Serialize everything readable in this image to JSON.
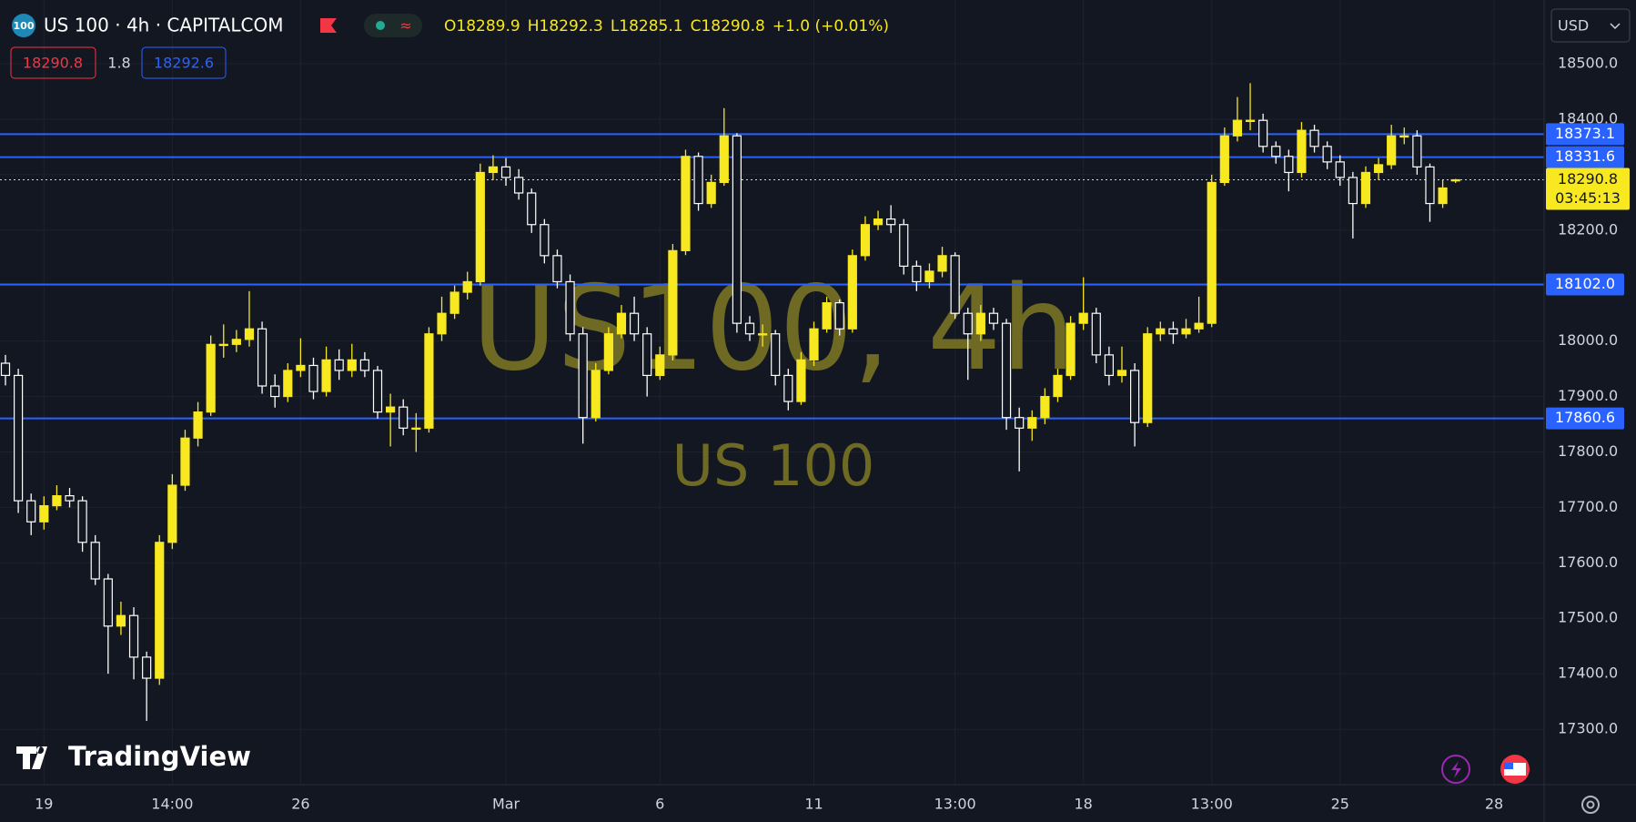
{
  "header": {
    "symbol": "US 100 · 4h · CAPITALCOM",
    "logo": "100",
    "legend_keys": [
      "O",
      "H",
      "L",
      "C"
    ],
    "change": "+1.0 (+0.01%)",
    "bid": "18290.8",
    "spread": "1.8",
    "ask": "18292.6",
    "currency": "USD"
  },
  "watermark": {
    "title": "US100, 4h",
    "subtitle": "US 100"
  },
  "branding": "TradingView",
  "chart_data": {
    "type": "candlestick",
    "grid": true,
    "up_color": "#f7e81f",
    "down_color": "#ffffff",
    "line_color": "#2962ff",
    "last_color": "#f7e81f",
    "ylim": [
      17200,
      18615
    ],
    "yticks": [
      {
        "value": 17300,
        "label": "17300.0"
      },
      {
        "value": 17400,
        "label": "17400.0"
      },
      {
        "value": 17500,
        "label": "17500.0"
      },
      {
        "value": 17600,
        "label": "17600.0"
      },
      {
        "value": 17700,
        "label": "17700.0"
      },
      {
        "value": 17800,
        "label": "17800.0"
      },
      {
        "value": 17900,
        "label": "17900.0"
      },
      {
        "value": 18000,
        "label": "18000.0"
      },
      {
        "value": 18100,
        "label": "18100.0"
      },
      {
        "value": 18200,
        "label": "18200.0"
      },
      {
        "value": 18300,
        "label": "18300.0"
      },
      {
        "value": 18400,
        "label": "18400.0"
      },
      {
        "value": 18500,
        "label": "18500.0"
      }
    ],
    "hlines": [
      {
        "value": 18373.1,
        "label": "18373.1"
      },
      {
        "value": 18331.6,
        "label": "18331.6"
      },
      {
        "value": 18102.0,
        "label": "18102.0"
      },
      {
        "value": 17860.6,
        "label": "17860.6"
      }
    ],
    "countdown": "03:45:13",
    "categories": [
      null,
      null,
      null,
      "19",
      null,
      null,
      null,
      null,
      null,
      null,
      null,
      null,
      null,
      "14:00",
      null,
      null,
      null,
      null,
      null,
      null,
      null,
      null,
      null,
      "26",
      null,
      null,
      null,
      null,
      null,
      null,
      null,
      null,
      null,
      null,
      null,
      null,
      null,
      null,
      null,
      "Mar",
      null,
      null,
      null,
      null,
      null,
      null,
      null,
      null,
      null,
      null,
      null,
      "6",
      null,
      null,
      null,
      null,
      null,
      null,
      null,
      null,
      null,
      null,
      null,
      "11",
      null,
      null,
      null,
      null,
      null,
      null,
      null,
      null,
      null,
      null,
      "13:00",
      null,
      null,
      null,
      null,
      null,
      null,
      null,
      null,
      null,
      "18",
      null,
      null,
      null,
      null,
      null,
      null,
      null,
      null,
      null,
      "13:00",
      null,
      null,
      null,
      null,
      null,
      null,
      null,
      null,
      null,
      "25",
      null,
      null,
      null,
      null,
      null,
      null,
      null,
      null,
      null,
      null,
      null,
      "28"
    ],
    "open": [
      17960,
      17938,
      17712,
      17674,
      17703,
      17721,
      17712,
      17637,
      17571,
      17486,
      17505,
      17430,
      17392,
      17637,
      17740,
      17825,
      17872,
      17994,
      17994,
      18003,
      18022,
      17919,
      17900,
      17947,
      17956,
      17909,
      17966,
      17947,
      17966,
      17947,
      17872,
      17881,
      17843,
      17843,
      18013,
      18050,
      18088,
      18107,
      18304,
      18314,
      18295,
      18267,
      18210,
      18154,
      18107,
      18013,
      17862,
      17947,
      18013,
      18050,
      18013,
      17938,
      17975,
      18163,
      18333,
      18248,
      18286,
      18370,
      18032,
      18013,
      18013,
      17938,
      17891,
      17966,
      18022,
      18069,
      18022,
      18154,
      18210,
      18220,
      18210,
      18135,
      18107,
      18126,
      18154,
      18050,
      18013,
      18050,
      18032,
      17862,
      17843,
      17862,
      17900,
      17938,
      18032,
      18050,
      17975,
      17938,
      17947,
      17853,
      18013,
      18022,
      18013,
      18022,
      18032,
      18286,
      18370,
      18398,
      18398,
      18351,
      18333,
      18304,
      18380,
      18351,
      18323,
      18295,
      18248,
      18304,
      18318,
      18370,
      18370,
      18314,
      18248,
      18289.9,
      null,
      null,
      null
    ],
    "high": [
      17975,
      17950,
      17725,
      17720,
      17740,
      17735,
      17720,
      17650,
      17580,
      17530,
      17520,
      17440,
      17650,
      17760,
      17840,
      17890,
      18010,
      18030,
      18020,
      18090,
      18035,
      17940,
      17960,
      18005,
      17970,
      17990,
      17985,
      17995,
      17980,
      17955,
      17905,
      17895,
      17870,
      18025,
      18080,
      18100,
      18125,
      18320,
      18335,
      18330,
      18310,
      18275,
      18220,
      18165,
      18120,
      18025,
      17960,
      18025,
      18065,
      18080,
      18025,
      17990,
      18175,
      18345,
      18340,
      18300,
      18420,
      18375,
      18045,
      18030,
      18020,
      17950,
      17980,
      18035,
      18080,
      18075,
      18165,
      18225,
      18235,
      18245,
      18220,
      18145,
      18140,
      18170,
      18160,
      18060,
      18065,
      18060,
      18040,
      17880,
      17875,
      17915,
      17950,
      18045,
      18115,
      18060,
      17990,
      17990,
      17960,
      18025,
      18035,
      18035,
      18040,
      18080,
      18300,
      18385,
      18440,
      18465,
      18410,
      18360,
      18345,
      18395,
      18390,
      18360,
      18335,
      18305,
      18315,
      18330,
      18390,
      18385,
      18380,
      18320,
      18290,
      18292.3,
      null,
      null,
      null
    ],
    "low": [
      17920,
      17690,
      17650,
      17660,
      17695,
      17700,
      17620,
      17560,
      17400,
      17470,
      17390,
      17315,
      17380,
      17625,
      17730,
      17810,
      17865,
      17970,
      17980,
      17990,
      17905,
      17880,
      17890,
      17935,
      17895,
      17900,
      17930,
      17935,
      17935,
      17860,
      17810,
      17830,
      17800,
      17835,
      18000,
      18040,
      18075,
      18100,
      18290,
      18280,
      18255,
      18195,
      18140,
      18095,
      18000,
      17815,
      17855,
      17940,
      18005,
      18000,
      17900,
      17930,
      17965,
      18155,
      18235,
      18240,
      18280,
      18015,
      18000,
      17990,
      17920,
      17875,
      17885,
      17955,
      18015,
      18010,
      18015,
      18145,
      18200,
      18195,
      18120,
      18090,
      18095,
      18115,
      18040,
      17930,
      18000,
      18020,
      17840,
      17765,
      17820,
      17850,
      17890,
      17930,
      18020,
      17960,
      17920,
      17925,
      17810,
      17845,
      18000,
      17995,
      18005,
      18015,
      18025,
      18280,
      18360,
      18380,
      18340,
      18320,
      18270,
      18295,
      18340,
      18310,
      18280,
      18185,
      18240,
      18290,
      18310,
      18355,
      18300,
      18215,
      18240,
      18285.1,
      null,
      null,
      null
    ],
    "close": [
      17938,
      17712,
      17674,
      17703,
      17721,
      17712,
      17637,
      17571,
      17486,
      17505,
      17430,
      17392,
      17637,
      17740,
      17825,
      17872,
      17994,
      17994,
      18003,
      18022,
      17919,
      17900,
      17947,
      17956,
      17909,
      17966,
      17947,
      17966,
      17947,
      17872,
      17881,
      17843,
      17843,
      18013,
      18050,
      18088,
      18107,
      18304,
      18314,
      18295,
      18267,
      18210,
      18154,
      18107,
      18013,
      17862,
      17947,
      18013,
      18050,
      18013,
      17938,
      17975,
      18163,
      18333,
      18248,
      18286,
      18370,
      18032,
      18013,
      18013,
      17938,
      17891,
      17966,
      18022,
      18069,
      18022,
      18154,
      18210,
      18220,
      18210,
      18135,
      18107,
      18126,
      18154,
      18050,
      18013,
      18050,
      18032,
      17862,
      17843,
      17862,
      17900,
      17938,
      18032,
      18050,
      17975,
      17938,
      17947,
      17853,
      18013,
      18022,
      18013,
      18022,
      18032,
      18286,
      18370,
      18398,
      18398,
      18351,
      18333,
      18304,
      18380,
      18351,
      18323,
      18295,
      18248,
      18304,
      18318,
      18370,
      18370,
      18314,
      18248,
      18276,
      18290.8,
      null,
      null,
      null
    ]
  }
}
